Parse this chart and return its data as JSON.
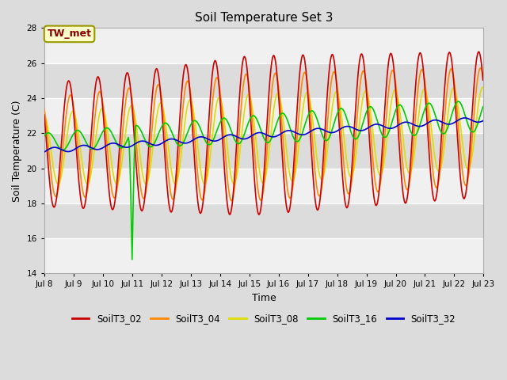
{
  "title": "Soil Temperature Set 3",
  "xlabel": "Time",
  "ylabel": "Soil Temperature (C)",
  "ylim": [
    14,
    28
  ],
  "yticks": [
    14,
    16,
    18,
    20,
    22,
    24,
    26,
    28
  ],
  "xtick_labels": [
    "Jul 8",
    "Jul 9",
    "Jul 10",
    "Jul 11",
    "Jul 12",
    "Jul 13",
    "Jul 14",
    "Jul 15",
    "Jul 16",
    "Jul 17",
    "Jul 18",
    "Jul 19",
    "Jul 20",
    "Jul 21",
    "Jul 22",
    "Jul 23"
  ],
  "annotation_text": "TW_met",
  "annotation_color": "#8B0000",
  "annotation_bg": "#FFFFCC",
  "annotation_border": "#999900",
  "colors": {
    "SoilT3_02": "#CC0000",
    "SoilT3_04": "#FF8800",
    "SoilT3_08": "#DDDD00",
    "SoilT3_16": "#00CC00",
    "SoilT3_32": "#0000CC"
  },
  "legend_labels": [
    "SoilT3_02",
    "SoilT3_04",
    "SoilT3_08",
    "SoilT3_16",
    "SoilT3_32"
  ],
  "bg_color": "#DCDCDC",
  "plot_bg_color_light": "#F0F0F0",
  "plot_bg_color_dark": "#DCDCDC",
  "grid_color": "#FFFFFF",
  "line_width": 1.2
}
